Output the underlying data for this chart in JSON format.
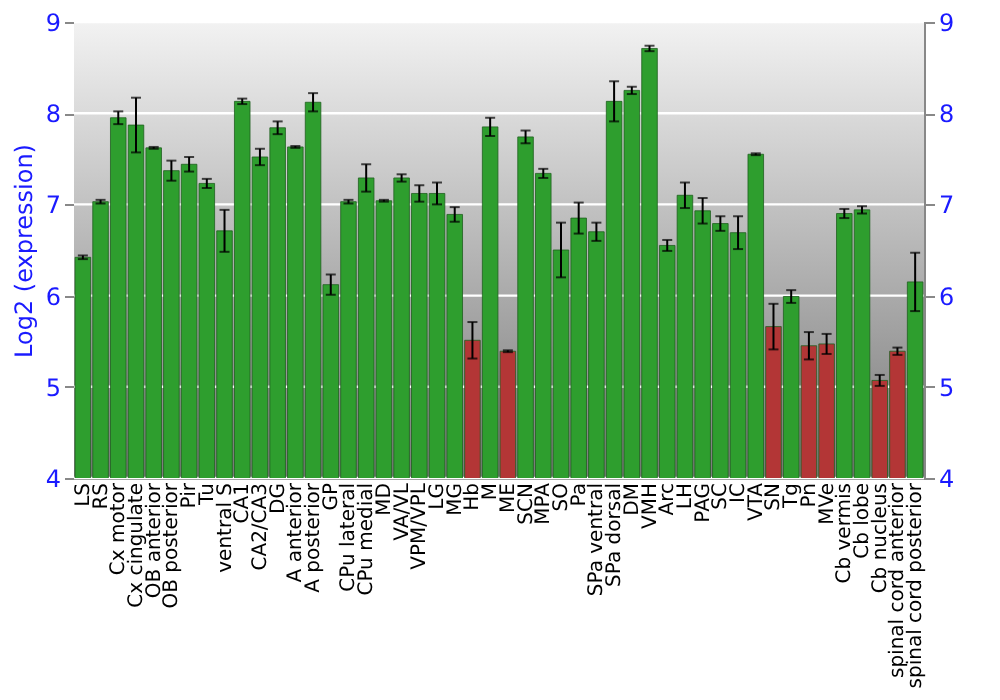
{
  "chart_data": {
    "type": "bar",
    "ylabel": "Log2 (expression)",
    "categories": [
      "LS",
      "RS",
      "Cx motor",
      "Cx cingulate",
      "OB anterior",
      "OB posterior",
      "Pir",
      "Tu",
      "ventral S",
      "CA1",
      "CA2/CA3",
      "DG",
      "A anterior",
      "A posterior",
      "GP",
      "CPu lateral",
      "CPu medial",
      "MD",
      "VA/VL",
      "VPM/VPL",
      "LG",
      "MG",
      "Hb",
      "M",
      "ME",
      "SCN",
      "MPA",
      "SO",
      "Pa",
      "SPa ventral",
      "SPa dorsal",
      "DM",
      "VMH",
      "Arc",
      "LH",
      "PAG",
      "SC",
      "IC",
      "VTA",
      "SN",
      "Tg",
      "Pn",
      "MVe",
      "Cb vermis",
      "Cb lobe",
      "Cb nucleus",
      "spinal cord anterior",
      "spinal cord posterior"
    ],
    "values": [
      6.42,
      7.03,
      7.95,
      7.87,
      7.62,
      7.37,
      7.44,
      7.23,
      6.71,
      8.13,
      7.52,
      7.84,
      7.63,
      8.12,
      6.12,
      7.03,
      7.29,
      7.04,
      7.29,
      7.12,
      7.12,
      6.89,
      5.51,
      7.85,
      5.39,
      7.74,
      7.34,
      6.5,
      6.85,
      6.7,
      8.13,
      8.25,
      8.71,
      6.55,
      7.1,
      6.93,
      6.79,
      6.69,
      7.55,
      5.66,
      5.99,
      5.45,
      5.47,
      6.9,
      6.94,
      5.07,
      5.39,
      6.15
    ],
    "errors": [
      0.02,
      0.02,
      0.07,
      0.3,
      0.01,
      0.11,
      0.08,
      0.05,
      0.23,
      0.03,
      0.09,
      0.07,
      0.01,
      0.1,
      0.11,
      0.02,
      0.15,
      0.01,
      0.04,
      0.09,
      0.12,
      0.08,
      0.2,
      0.1,
      0.01,
      0.07,
      0.05,
      0.3,
      0.17,
      0.1,
      0.22,
      0.04,
      0.03,
      0.06,
      0.14,
      0.14,
      0.08,
      0.18,
      0.01,
      0.25,
      0.07,
      0.15,
      0.11,
      0.05,
      0.04,
      0.06,
      0.04,
      0.32
    ],
    "colors": [
      "#2e9e2e",
      "#2e9e2e",
      "#2e9e2e",
      "#2e9e2e",
      "#2e9e2e",
      "#2e9e2e",
      "#2e9e2e",
      "#2e9e2e",
      "#2e9e2e",
      "#2e9e2e",
      "#2e9e2e",
      "#2e9e2e",
      "#2e9e2e",
      "#2e9e2e",
      "#2e9e2e",
      "#2e9e2e",
      "#2e9e2e",
      "#2e9e2e",
      "#2e9e2e",
      "#2e9e2e",
      "#2e9e2e",
      "#2e9e2e",
      "#b33636",
      "#2e9e2e",
      "#b33636",
      "#2e9e2e",
      "#2e9e2e",
      "#2e9e2e",
      "#2e9e2e",
      "#2e9e2e",
      "#2e9e2e",
      "#2e9e2e",
      "#2e9e2e",
      "#2e9e2e",
      "#2e9e2e",
      "#2e9e2e",
      "#2e9e2e",
      "#2e9e2e",
      "#2e9e2e",
      "#b33636",
      "#2e9e2e",
      "#b33636",
      "#b33636",
      "#2e9e2e",
      "#2e9e2e",
      "#b33636",
      "#b33636",
      "#2e9e2e"
    ],
    "ylim": [
      4,
      9
    ],
    "yticks": [
      4,
      5,
      6,
      7,
      8,
      9
    ],
    "y2lim": [
      4,
      9
    ],
    "y2ticks": [
      4,
      5,
      6,
      7,
      8,
      9
    ],
    "grid": "y"
  }
}
